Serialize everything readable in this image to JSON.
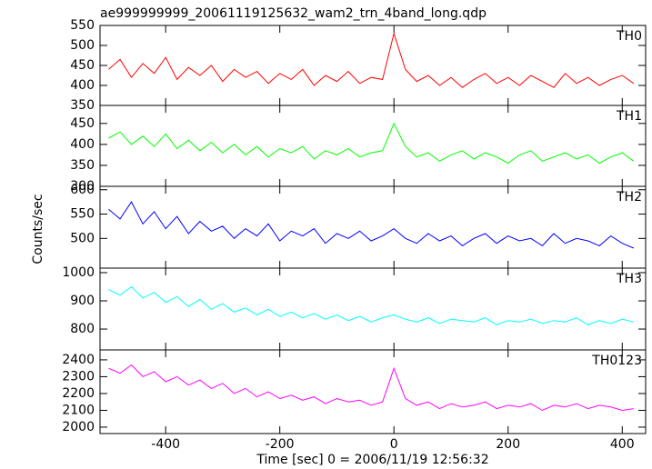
{
  "chart_data": {
    "type": "line",
    "title": "ae999999999_20061119125632_wam2_trn_4band_long.qdp",
    "xlabel": "Time [sec] 0 = 2006/11/19 12:56:32",
    "ylabel": "Counts/sec",
    "xlim": [
      -515,
      441
    ],
    "xticks": [
      -400,
      -200,
      0,
      200,
      400
    ],
    "x": [
      -500,
      -480,
      -460,
      -440,
      -420,
      -400,
      -380,
      -360,
      -340,
      -320,
      -300,
      -280,
      -260,
      -240,
      -220,
      -200,
      -180,
      -160,
      -140,
      -120,
      -100,
      -80,
      -60,
      -40,
      -20,
      0,
      20,
      40,
      60,
      80,
      100,
      120,
      140,
      160,
      180,
      200,
      220,
      240,
      260,
      280,
      300,
      320,
      340,
      360,
      380,
      400,
      420
    ],
    "series": [
      {
        "name": "TH0",
        "color": "#ff0000",
        "ylim": [
          350,
          550
        ],
        "yticks": [
          350,
          400,
          450,
          500,
          550
        ],
        "values": [
          440,
          465,
          420,
          455,
          430,
          470,
          415,
          445,
          425,
          450,
          410,
          440,
          420,
          435,
          405,
          430,
          415,
          440,
          400,
          425,
          410,
          435,
          405,
          420,
          415,
          530,
          440,
          410,
          425,
          400,
          420,
          395,
          415,
          430,
          405,
          420,
          400,
          425,
          410,
          395,
          430,
          405,
          420,
          400,
          415,
          425,
          405
        ]
      },
      {
        "name": "TH1",
        "color": "#00ff00",
        "ylim": [
          300,
          493
        ],
        "yticks": [
          300,
          350,
          400,
          450
        ],
        "values": [
          415,
          430,
          400,
          420,
          395,
          425,
          390,
          410,
          385,
          405,
          380,
          400,
          375,
          395,
          370,
          390,
          380,
          395,
          365,
          385,
          375,
          390,
          370,
          380,
          385,
          450,
          395,
          370,
          380,
          360,
          375,
          385,
          365,
          380,
          370,
          355,
          375,
          385,
          360,
          370,
          380,
          365,
          375,
          355,
          370,
          380,
          360
        ]
      },
      {
        "name": "TH2",
        "color": "#0000ff",
        "ylim": [
          439,
          607
        ],
        "yticks": [
          500,
          550,
          600
        ],
        "values": [
          560,
          540,
          575,
          530,
          555,
          520,
          545,
          510,
          535,
          515,
          525,
          500,
          520,
          505,
          530,
          495,
          515,
          505,
          520,
          490,
          510,
          500,
          515,
          495,
          505,
          520,
          500,
          490,
          510,
          495,
          505,
          485,
          500,
          510,
          490,
          505,
          495,
          500,
          485,
          510,
          490,
          500,
          495,
          485,
          505,
          490,
          480
        ]
      },
      {
        "name": "TH3",
        "color": "#00ffff",
        "ylim": [
          726,
          1016
        ],
        "yticks": [
          800,
          900,
          1000
        ],
        "values": [
          940,
          920,
          950,
          910,
          930,
          895,
          915,
          880,
          905,
          870,
          890,
          860,
          875,
          850,
          870,
          845,
          860,
          840,
          855,
          835,
          850,
          830,
          845,
          825,
          840,
          850,
          835,
          825,
          840,
          820,
          835,
          830,
          825,
          840,
          815,
          830,
          825,
          835,
          820,
          830,
          825,
          840,
          815,
          830,
          820,
          835,
          825
        ]
      },
      {
        "name": "TH0123",
        "color": "#ff00ff",
        "ylim": [
          1962,
          2459
        ],
        "yticks": [
          2000,
          2100,
          2200,
          2300,
          2400
        ],
        "values": [
          2350,
          2320,
          2370,
          2300,
          2330,
          2270,
          2300,
          2250,
          2280,
          2230,
          2260,
          2200,
          2230,
          2180,
          2210,
          2170,
          2190,
          2160,
          2180,
          2140,
          2170,
          2150,
          2160,
          2130,
          2150,
          2350,
          2170,
          2130,
          2150,
          2110,
          2140,
          2120,
          2130,
          2150,
          2110,
          2130,
          2120,
          2140,
          2100,
          2130,
          2120,
          2140,
          2110,
          2130,
          2120,
          2100,
          2110
        ]
      }
    ]
  }
}
